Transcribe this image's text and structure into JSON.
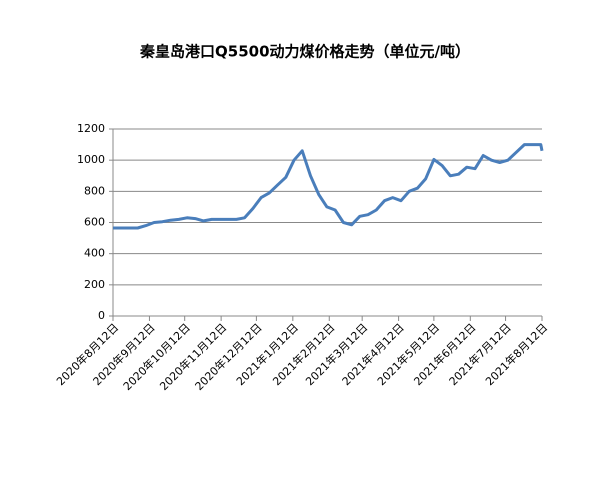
{
  "chart_data": {
    "type": "line",
    "title": "秦皇岛港口Q5500动力煤价格走势（单位元/吨）",
    "x": [
      "2020-08-12",
      "2020-08-19",
      "2020-08-26",
      "2020-09-02",
      "2020-09-09",
      "2020-09-16",
      "2020-09-23",
      "2020-09-30",
      "2020-10-07",
      "2020-10-14",
      "2020-10-21",
      "2020-10-28",
      "2020-11-04",
      "2020-11-11",
      "2020-11-18",
      "2020-11-25",
      "2020-12-02",
      "2020-12-09",
      "2020-12-16",
      "2020-12-23",
      "2020-12-30",
      "2021-01-06",
      "2021-01-13",
      "2021-01-20",
      "2021-01-27",
      "2021-02-03",
      "2021-02-10",
      "2021-02-17",
      "2021-02-24",
      "2021-03-03",
      "2021-03-10",
      "2021-03-17",
      "2021-03-24",
      "2021-03-31",
      "2021-04-07",
      "2021-04-14",
      "2021-04-21",
      "2021-04-28",
      "2021-05-05",
      "2021-05-12",
      "2021-05-19",
      "2021-05-26",
      "2021-06-02",
      "2021-06-09",
      "2021-06-16",
      "2021-06-23",
      "2021-06-30",
      "2021-07-07",
      "2021-07-14",
      "2021-07-21",
      "2021-07-28",
      "2021-08-04",
      "2021-08-11",
      "2021-08-12"
    ],
    "series": [
      {
        "color": "#4a7ebb",
        "values": [
          565,
          565,
          565,
          565,
          580,
          600,
          605,
          615,
          620,
          630,
          625,
          610,
          620,
          620,
          620,
          620,
          630,
          690,
          760,
          790,
          840,
          890,
          1000,
          1060,
          900,
          780,
          700,
          680,
          600,
          585,
          640,
          650,
          680,
          740,
          760,
          740,
          800,
          820,
          880,
          1005,
          965,
          900,
          910,
          955,
          945,
          1030,
          1000,
          985,
          1000,
          1050,
          1100,
          1100,
          1100,
          1060
        ]
      }
    ],
    "xlim": [
      "2020-08-12",
      "2021-08-12"
    ],
    "xticks": [
      {
        "value": "2020-08-12",
        "label": "2020年8月12日"
      },
      {
        "value": "2020-09-12",
        "label": "2020年9月12日"
      },
      {
        "value": "2020-10-12",
        "label": "2020年10月12日"
      },
      {
        "value": "2020-11-12",
        "label": "2020年11月12日"
      },
      {
        "value": "2020-12-12",
        "label": "2020年12月12日"
      },
      {
        "value": "2021-01-12",
        "label": "2021年1月12日"
      },
      {
        "value": "2021-02-12",
        "label": "2021年2月12日"
      },
      {
        "value": "2021-03-12",
        "label": "2021年3月12日"
      },
      {
        "value": "2021-04-12",
        "label": "2021年4月12日"
      },
      {
        "value": "2021-05-12",
        "label": "2021年5月12日"
      },
      {
        "value": "2021-06-12",
        "label": "2021年6月12日"
      },
      {
        "value": "2021-07-12",
        "label": "2021年7月12日"
      },
      {
        "value": "2021-08-12",
        "label": "2021年8月12日"
      }
    ],
    "ylim": [
      0,
      1200
    ],
    "yticks": [
      0,
      200,
      400,
      600,
      800,
      1000,
      1200
    ],
    "grid": true
  }
}
